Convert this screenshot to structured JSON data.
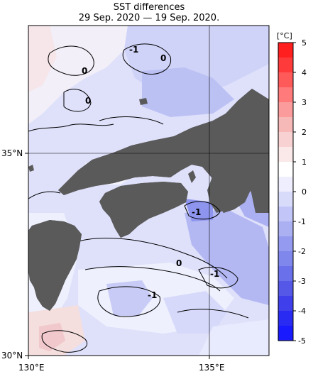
{
  "title": "SST differences",
  "subtitle": "29 Sep. 2020 — 19 Sep. 2020.",
  "axes": {
    "x_ticks": [
      "130°E",
      "135°E"
    ],
    "y_ticks": [
      "35°N",
      "30°N"
    ]
  },
  "colorbar": {
    "unit": "[°C]",
    "ticks": [
      "5",
      "4",
      "3",
      "2",
      "1",
      "0",
      "-1",
      "-2",
      "-3",
      "-4",
      "-5"
    ],
    "colors": [
      "#ff1f1f",
      "#ff3a3a",
      "#ff5a5a",
      "#ff7a7a",
      "#fb9b9b",
      "#f7b8b8",
      "#f8d2d2",
      "#fbe8e8",
      "#ffffff",
      "#eeeefe",
      "#d9dbfb",
      "#c2c5f7",
      "#aab0f2",
      "#949af0",
      "#7f86ec",
      "#6a70e9",
      "#5557e7",
      "#3f40eb",
      "#2a2bf2",
      "#1a1aff"
    ]
  },
  "contour_labels": [
    "0",
    "-1",
    "0",
    "0",
    "0",
    "-1",
    "-1",
    "-1"
  ],
  "colors": {
    "land": "#5a5a5a",
    "sea_base": "#dcdffb",
    "grid": "#000000"
  }
}
